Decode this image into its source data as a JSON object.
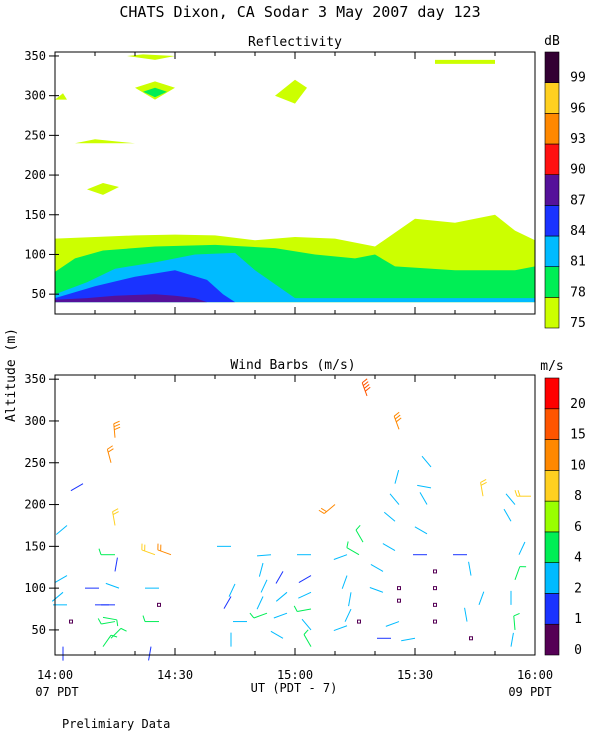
{
  "title": "CHATS Dixon, CA  Sodar   3 May 2007  day 123",
  "y_axis_label": "Altitude (m)",
  "footer": {
    "start_label": "07 PDT",
    "end_label": "09 PDT",
    "x_axis_label": "UT  (PDT - 7)",
    "note": "Prelimiary Data"
  },
  "colors": {
    "dB_75": "#ccff00",
    "dB_78": "#00ee55",
    "dB_81": "#00bbff",
    "dB_84": "#1a33ff",
    "dB_87": "#55119a",
    "dB_90": "#ff1111",
    "dB_93": "#ff8800",
    "dB_96": "#ffd020",
    "dB_99": "#330033"
  },
  "chart_data": [
    {
      "type": "heatmap",
      "title": "Reflectivity",
      "x_ticks": [
        "14:00",
        "14:30",
        "15:00",
        "15:30",
        "16:00"
      ],
      "x_range_min": [
        0,
        120
      ],
      "ylim": [
        25,
        355
      ],
      "y_ticks": [
        50,
        100,
        150,
        200,
        250,
        300,
        350
      ],
      "colorbar": {
        "unit": "dB",
        "levels": [
          75,
          78,
          81,
          84,
          87,
          90,
          93,
          96,
          99
        ],
        "colors": [
          "#ccff00",
          "#00ee55",
          "#00bbff",
          "#1a33ff",
          "#55119a",
          "#ff1111",
          "#ff8800",
          "#ffd020",
          "#330033"
        ]
      },
      "regions": [
        {
          "level": 75,
          "points": [
            [
              0,
              120
            ],
            [
              10,
              122
            ],
            [
              20,
              124
            ],
            [
              30,
              125
            ],
            [
              40,
              124
            ],
            [
              50,
              118
            ],
            [
              60,
              122
            ],
            [
              70,
              120
            ],
            [
              80,
              110
            ],
            [
              90,
              145
            ],
            [
              100,
              140
            ],
            [
              110,
              150
            ],
            [
              115,
              130
            ],
            [
              120,
              118
            ],
            [
              120,
              40
            ],
            [
              0,
              40
            ]
          ]
        },
        {
          "level": 78,
          "points": [
            [
              0,
              78
            ],
            [
              5,
              95
            ],
            [
              12,
              105
            ],
            [
              25,
              110
            ],
            [
              40,
              112
            ],
            [
              55,
              108
            ],
            [
              65,
              100
            ],
            [
              75,
              95
            ],
            [
              80,
              100
            ],
            [
              85,
              85
            ],
            [
              100,
              80
            ],
            [
              115,
              80
            ],
            [
              120,
              85
            ],
            [
              120,
              40
            ],
            [
              0,
              40
            ]
          ]
        },
        {
          "level": 81,
          "points": [
            [
              0,
              50
            ],
            [
              8,
              65
            ],
            [
              15,
              82
            ],
            [
              25,
              90
            ],
            [
              35,
              100
            ],
            [
              45,
              102
            ],
            [
              50,
              80
            ],
            [
              60,
              45
            ],
            [
              80,
              45
            ],
            [
              100,
              45
            ],
            [
              120,
              45
            ],
            [
              120,
              40
            ],
            [
              0,
              40
            ]
          ]
        },
        {
          "level": 84,
          "points": [
            [
              0,
              45
            ],
            [
              10,
              60
            ],
            [
              20,
              72
            ],
            [
              30,
              80
            ],
            [
              38,
              68
            ],
            [
              42,
              50
            ],
            [
              45,
              40
            ],
            [
              0,
              40
            ]
          ]
        },
        {
          "level": 87,
          "points": [
            [
              0,
              43
            ],
            [
              8,
              45
            ],
            [
              15,
              48
            ],
            [
              25,
              50
            ],
            [
              30,
              48
            ],
            [
              35,
              45
            ],
            [
              38,
              40
            ],
            [
              0,
              40
            ]
          ]
        },
        {
          "level": 75,
          "points": [
            [
              8,
              182
            ],
            [
              12,
              190
            ],
            [
              16,
              185
            ],
            [
              12,
              175
            ]
          ]
        },
        {
          "level": 75,
          "points": [
            [
              5,
              240
            ],
            [
              10,
              245
            ],
            [
              20,
              240
            ]
          ]
        },
        {
          "level": 75,
          "points": [
            [
              20,
              310
            ],
            [
              25,
              318
            ],
            [
              30,
              310
            ],
            [
              25,
              295
            ]
          ]
        },
        {
          "level": 78,
          "points": [
            [
              22,
              305
            ],
            [
              25,
              310
            ],
            [
              28,
              305
            ],
            [
              25,
              298
            ]
          ]
        },
        {
          "level": 75,
          "points": [
            [
              18,
              350
            ],
            [
              25,
              345
            ],
            [
              30,
              350
            ],
            [
              22,
              352
            ]
          ]
        },
        {
          "level": 75,
          "points": [
            [
              55,
              300
            ],
            [
              60,
              320
            ],
            [
              63,
              310
            ],
            [
              60,
              290
            ]
          ]
        },
        {
          "level": 75,
          "points": [
            [
              95,
              345
            ],
            [
              110,
              345
            ],
            [
              110,
              340
            ],
            [
              95,
              340
            ]
          ]
        },
        {
          "level": 75,
          "points": [
            [
              0,
              295
            ],
            [
              2,
              303
            ],
            [
              3,
              295
            ]
          ]
        }
      ]
    },
    {
      "type": "scatter",
      "title": "Wind Barbs (m/s)",
      "x_ticks": [
        "14:00",
        "14:30",
        "15:00",
        "15:30",
        "16:00"
      ],
      "ylim": [
        20,
        355
      ],
      "y_ticks": [
        50,
        100,
        150,
        200,
        250,
        300,
        350
      ],
      "colorbar": {
        "unit": "m/s",
        "levels": [
          0,
          1,
          2,
          4,
          6,
          8,
          10,
          15,
          20
        ],
        "colors": [
          "#550055",
          "#1a33ff",
          "#00bbff",
          "#00ee55",
          "#99ff00",
          "#ffd020",
          "#ff8800",
          "#ff5500",
          "#ff0000"
        ]
      },
      "barbs": [
        {
          "t": 2,
          "alt": 30,
          "dir": 180,
          "speed": 1.5
        },
        {
          "t": 4,
          "alt": 60,
          "dir": 10,
          "speed": 0.5
        },
        {
          "t": 3,
          "alt": 80,
          "dir": 270,
          "speed": 3
        },
        {
          "t": 2,
          "alt": 95,
          "dir": 230,
          "speed": 2.5
        },
        {
          "t": 3,
          "alt": 115,
          "dir": 240,
          "speed": 2.5
        },
        {
          "t": 3,
          "alt": 175,
          "dir": 230,
          "speed": 2.5
        },
        {
          "t": 7,
          "alt": 225,
          "dir": 240,
          "speed": 1.5
        },
        {
          "t": 12,
          "alt": 30,
          "dir": 35,
          "speed": 4
        },
        {
          "t": 12,
          "alt": 65,
          "dir": 100,
          "speed": 4
        },
        {
          "t": 11,
          "alt": 100,
          "dir": 270,
          "speed": 1.5
        },
        {
          "t": 10,
          "alt": 80,
          "dir": 90,
          "speed": 1.5
        },
        {
          "t": 14,
          "alt": 40,
          "dir": 45,
          "speed": 5
        },
        {
          "t": 15,
          "alt": 60,
          "dir": 260,
          "speed": 5
        },
        {
          "t": 15,
          "alt": 80,
          "dir": 270,
          "speed": 1.2
        },
        {
          "t": 16,
          "alt": 100,
          "dir": 290,
          "speed": 2
        },
        {
          "t": 15,
          "alt": 120,
          "dir": 10,
          "speed": 1.5
        },
        {
          "t": 15,
          "alt": 140,
          "dir": 270,
          "speed": 4
        },
        {
          "t": 15,
          "alt": 175,
          "dir": 350,
          "speed": 9
        },
        {
          "t": 14,
          "alt": 250,
          "dir": 345,
          "speed": 11
        },
        {
          "t": 15,
          "alt": 280,
          "dir": 355,
          "speed": 14
        },
        {
          "t": 24,
          "alt": 30,
          "dir": 190,
          "speed": 1.5
        },
        {
          "t": 26,
          "alt": 60,
          "dir": 270,
          "speed": 5
        },
        {
          "t": 26,
          "alt": 80,
          "dir": 0,
          "speed": 0.3
        },
        {
          "t": 26,
          "alt": 100,
          "dir": 270,
          "speed": 2
        },
        {
          "t": 25,
          "alt": 140,
          "dir": 290,
          "speed": 9
        },
        {
          "t": 29,
          "alt": 140,
          "dir": 290,
          "speed": 10
        },
        {
          "t": 44,
          "alt": 30,
          "dir": 0,
          "speed": 2
        },
        {
          "t": 44,
          "alt": 90,
          "dir": 210,
          "speed": 1.5
        },
        {
          "t": 45,
          "alt": 105,
          "dir": 205,
          "speed": 2
        },
        {
          "t": 44,
          "alt": 150,
          "dir": 270,
          "speed": 2.5
        },
        {
          "t": 48,
          "alt": 60,
          "dir": 270,
          "speed": 2.5
        },
        {
          "t": 53,
          "alt": 70,
          "dir": 250,
          "speed": 5
        },
        {
          "t": 52,
          "alt": 90,
          "dir": 205,
          "speed": 2
        },
        {
          "t": 53,
          "alt": 110,
          "dir": 205,
          "speed": 2
        },
        {
          "t": 52,
          "alt": 130,
          "dir": 195,
          "speed": 2.5
        },
        {
          "t": 54,
          "alt": 140,
          "dir": 265,
          "speed": 3
        },
        {
          "t": 57,
          "alt": 40,
          "dir": 300,
          "speed": 2
        },
        {
          "t": 58,
          "alt": 70,
          "dir": 250,
          "speed": 2.5
        },
        {
          "t": 58,
          "alt": 95,
          "dir": 230,
          "speed": 2
        },
        {
          "t": 57,
          "alt": 120,
          "dir": 210,
          "speed": 1.5
        },
        {
          "t": 64,
          "alt": 30,
          "dir": 330,
          "speed": 4
        },
        {
          "t": 64,
          "alt": 50,
          "dir": 320,
          "speed": 2.5
        },
        {
          "t": 64,
          "alt": 75,
          "dir": 260,
          "speed": 4
        },
        {
          "t": 64,
          "alt": 95,
          "dir": 245,
          "speed": 3
        },
        {
          "t": 64,
          "alt": 115,
          "dir": 240,
          "speed": 1.5
        },
        {
          "t": 64,
          "alt": 140,
          "dir": 270,
          "speed": 3
        },
        {
          "t": 73,
          "alt": 55,
          "dir": 250,
          "speed": 2.5
        },
        {
          "t": 74,
          "alt": 75,
          "dir": 205,
          "speed": 2.5
        },
        {
          "t": 74,
          "alt": 95,
          "dir": 190,
          "speed": 2
        },
        {
          "t": 73,
          "alt": 115,
          "dir": 200,
          "speed": 2
        },
        {
          "t": 73,
          "alt": 140,
          "dir": 250,
          "speed": 2.5
        },
        {
          "t": 70,
          "alt": 200,
          "dir": 230,
          "speed": 10
        },
        {
          "t": 76,
          "alt": 60,
          "dir": 0,
          "speed": 0.5
        },
        {
          "t": 76,
          "alt": 140,
          "dir": 300,
          "speed": 4
        },
        {
          "t": 77,
          "alt": 155,
          "dir": 330,
          "speed": 5
        },
        {
          "t": 78,
          "alt": 330,
          "dir": 340,
          "speed": 16
        },
        {
          "t": 82,
          "alt": 95,
          "dir": 290,
          "speed": 2.5
        },
        {
          "t": 82,
          "alt": 120,
          "dir": 300,
          "speed": 2
        },
        {
          "t": 84,
          "alt": 40,
          "dir": 270,
          "speed": 1.5
        },
        {
          "t": 85,
          "alt": 145,
          "dir": 300,
          "speed": 2
        },
        {
          "t": 86,
          "alt": 60,
          "dir": 250,
          "speed": 3
        },
        {
          "t": 85,
          "alt": 180,
          "dir": 310,
          "speed": 2.5
        },
        {
          "t": 86,
          "alt": 200,
          "dir": 320,
          "speed": 3
        },
        {
          "t": 85,
          "alt": 225,
          "dir": 15,
          "speed": 2
        },
        {
          "t": 86,
          "alt": 85,
          "dir": 0,
          "speed": 0.3
        },
        {
          "t": 86,
          "alt": 100,
          "dir": 0,
          "speed": 0.3
        },
        {
          "t": 86,
          "alt": 290,
          "dir": 340,
          "speed": 13
        },
        {
          "t": 90,
          "alt": 40,
          "dir": 260,
          "speed": 2
        },
        {
          "t": 93,
          "alt": 140,
          "dir": 270,
          "speed": 1.5
        },
        {
          "t": 93,
          "alt": 165,
          "dir": 300,
          "speed": 2.5
        },
        {
          "t": 93,
          "alt": 200,
          "dir": 330,
          "speed": 2.5
        },
        {
          "t": 94,
          "alt": 220,
          "dir": 280,
          "speed": 3
        },
        {
          "t": 94,
          "alt": 245,
          "dir": 320,
          "speed": 2.5
        },
        {
          "t": 95,
          "alt": 60,
          "dir": 0,
          "speed": 0.3
        },
        {
          "t": 95,
          "alt": 80,
          "dir": 0,
          "speed": 0.3
        },
        {
          "t": 95,
          "alt": 100,
          "dir": 0,
          "speed": 0.3
        },
        {
          "t": 95,
          "alt": 120,
          "dir": 0,
          "speed": 0.3
        },
        {
          "t": 104,
          "alt": 40,
          "dir": 0,
          "speed": 0.3
        },
        {
          "t": 103,
          "alt": 60,
          "dir": 350,
          "speed": 2
        },
        {
          "t": 103,
          "alt": 140,
          "dir": 270,
          "speed": 1.5
        },
        {
          "t": 104,
          "alt": 115,
          "dir": 350,
          "speed": 2
        },
        {
          "t": 106,
          "alt": 80,
          "dir": 20,
          "speed": 3
        },
        {
          "t": 107,
          "alt": 210,
          "dir": 350,
          "speed": 9
        },
        {
          "t": 114,
          "alt": 30,
          "dir": 10,
          "speed": 2.5
        },
        {
          "t": 115,
          "alt": 50,
          "dir": 355,
          "speed": 5
        },
        {
          "t": 114,
          "alt": 80,
          "dir": 0,
          "speed": 2.5
        },
        {
          "t": 115,
          "alt": 110,
          "dir": 20,
          "speed": 4
        },
        {
          "t": 116,
          "alt": 140,
          "dir": 25,
          "speed": 3
        },
        {
          "t": 114,
          "alt": 180,
          "dir": 330,
          "speed": 2.5
        },
        {
          "t": 115,
          "alt": 200,
          "dir": 320,
          "speed": 2.5
        },
        {
          "t": 119,
          "alt": 210,
          "dir": 270,
          "speed": 8
        }
      ]
    }
  ]
}
